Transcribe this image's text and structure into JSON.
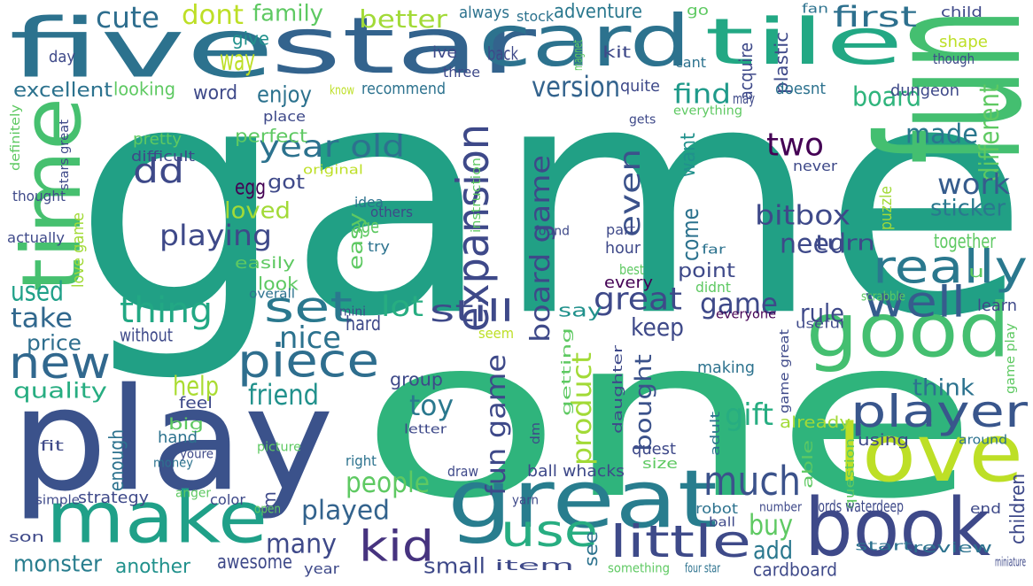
{
  "words": [
    {
      "text": "game",
      "color": "#21a085"
    },
    {
      "text": "one",
      "color": "#2fb47c"
    },
    {
      "text": "play",
      "color": "#3b528b"
    },
    {
      "text": "five",
      "color": "#2c728e"
    },
    {
      "text": "star",
      "color": "#33638d"
    },
    {
      "text": "card",
      "color": "#2c728e"
    },
    {
      "text": "tile",
      "color": "#22a884"
    },
    {
      "text": "fun",
      "color": "#44bf70"
    },
    {
      "text": "great",
      "color": "#287d8e"
    },
    {
      "text": "love",
      "color": "#bddf26"
    },
    {
      "text": "good",
      "color": "#44bf70"
    },
    {
      "text": "make",
      "color": "#1fa088"
    },
    {
      "text": "book",
      "color": "#3e4989"
    },
    {
      "text": "time",
      "color": "#46c06f"
    },
    {
      "text": "player",
      "color": "#39568c"
    },
    {
      "text": "really",
      "color": "#2a788e"
    },
    {
      "text": "expansion",
      "color": "#3e4989"
    },
    {
      "text": "piece",
      "color": "#2e6e8e"
    },
    {
      "text": "new",
      "color": "#31688e"
    },
    {
      "text": "set",
      "color": "#2a788e"
    },
    {
      "text": "well",
      "color": "#365c8d"
    },
    {
      "text": "use",
      "color": "#27ad81"
    },
    {
      "text": "little",
      "color": "#3e4a89"
    },
    {
      "text": "kid",
      "color": "#46337f"
    },
    {
      "text": "much",
      "color": "#3b528b"
    },
    {
      "text": "thing",
      "color": "#22a884"
    },
    {
      "text": "board game",
      "color": "#3e4989"
    },
    {
      "text": "fun game",
      "color": "#3e4989"
    },
    {
      "text": "great",
      "color": "#3e4989"
    },
    {
      "text": "game",
      "color": "#3e4989"
    },
    {
      "text": "cute",
      "color": "#2e6e8e"
    },
    {
      "text": "dont",
      "color": "#bddf26"
    },
    {
      "text": "family",
      "color": "#5ec962"
    },
    {
      "text": "better",
      "color": "#a2da37"
    },
    {
      "text": "adventure",
      "color": "#2a788e"
    },
    {
      "text": "first",
      "color": "#2d708e"
    },
    {
      "text": "version",
      "color": "#33638d"
    },
    {
      "text": "find",
      "color": "#1f9a8a"
    },
    {
      "text": "made",
      "color": "#2a778e"
    },
    {
      "text": "board",
      "color": "#2fb47c"
    },
    {
      "text": "different",
      "color": "#5ec962"
    },
    {
      "text": "year old",
      "color": "#2c728e"
    },
    {
      "text": "two",
      "color": "#440154"
    },
    {
      "text": "work",
      "color": "#365c8d"
    },
    {
      "text": "sticker",
      "color": "#2a788e"
    },
    {
      "text": "dd",
      "color": "#3e4989"
    },
    {
      "text": "playing",
      "color": "#3e4989"
    },
    {
      "text": "bitbox",
      "color": "#3e4989"
    },
    {
      "text": "need",
      "color": "#3e4989"
    },
    {
      "text": "even",
      "color": "#3b528b"
    },
    {
      "text": "come",
      "color": "#2c728e"
    },
    {
      "text": "want",
      "color": "#21918c"
    },
    {
      "text": "nice",
      "color": "#2c728e"
    },
    {
      "text": "lot",
      "color": "#27ad81"
    },
    {
      "text": "still",
      "color": "#3e4989"
    },
    {
      "text": "used",
      "color": "#1fa088"
    },
    {
      "text": "take",
      "color": "#31688e"
    },
    {
      "text": "price",
      "color": "#2e6e8e"
    },
    {
      "text": "quality",
      "color": "#27ad81"
    },
    {
      "text": "help",
      "color": "#aadc32"
    },
    {
      "text": "friend",
      "color": "#21918c"
    },
    {
      "text": "people",
      "color": "#5ec962"
    },
    {
      "text": "played",
      "color": "#33638d"
    },
    {
      "text": "many",
      "color": "#3e4989"
    },
    {
      "text": "monster",
      "color": "#287d8e"
    },
    {
      "text": "another",
      "color": "#21918c"
    },
    {
      "text": "awesome",
      "color": "#3e4989"
    },
    {
      "text": "small",
      "color": "#3e4989"
    },
    {
      "text": "toy",
      "color": "#2a788e"
    },
    {
      "text": "product",
      "color": "#a2da37"
    },
    {
      "text": "bought",
      "color": "#3b528b"
    },
    {
      "text": "gift",
      "color": "#27ad81"
    },
    {
      "text": "buy",
      "color": "#5ec962"
    },
    {
      "text": "add",
      "color": "#2a788e"
    },
    {
      "text": "cardboard",
      "color": "#3e4989"
    },
    {
      "text": "way",
      "color": "#bddf26"
    },
    {
      "text": "give",
      "color": "#21918c"
    },
    {
      "text": "word",
      "color": "#3e4989"
    },
    {
      "text": "enjoy",
      "color": "#2c728e"
    },
    {
      "text": "excellent",
      "color": "#2c728e"
    },
    {
      "text": "looking",
      "color": "#5ec962"
    },
    {
      "text": "perfect",
      "color": "#5ec962"
    },
    {
      "text": "egg",
      "color": "#440154"
    },
    {
      "text": "got",
      "color": "#3e4989"
    },
    {
      "text": "loved",
      "color": "#a2da37"
    },
    {
      "text": "age",
      "color": "#5ec962"
    },
    {
      "text": "easy",
      "color": "#5ec962"
    },
    {
      "text": "rule",
      "color": "#3e4989"
    },
    {
      "text": "turn",
      "color": "#3e4989"
    },
    {
      "text": "together",
      "color": "#5ec962"
    },
    {
      "text": "keep",
      "color": "#3e4989"
    },
    {
      "text": "think",
      "color": "#2c728e"
    },
    {
      "text": "hard",
      "color": "#3e4989"
    },
    {
      "text": "group",
      "color": "#3e4989"
    },
    {
      "text": "enough",
      "color": "#2c728e"
    },
    {
      "text": "children",
      "color": "#3e4989"
    },
    {
      "text": "see",
      "color": "#2c728e"
    },
    {
      "text": "im",
      "color": "#3e4989"
    },
    {
      "text": "look",
      "color": "#5ec962"
    },
    {
      "text": "point",
      "color": "#3e4989"
    },
    {
      "text": "without",
      "color": "#3e4989"
    },
    {
      "text": "say",
      "color": "#21918c"
    },
    {
      "text": "learn",
      "color": "#3e4989"
    },
    {
      "text": "always",
      "color": "#2c728e"
    },
    {
      "text": "stock",
      "color": "#2c728e"
    },
    {
      "text": "go",
      "color": "#5ec962"
    },
    {
      "text": "fan",
      "color": "#2c728e"
    },
    {
      "text": "child",
      "color": "#3e4989"
    },
    {
      "text": "magnet",
      "color": "#5ec962"
    },
    {
      "text": "kit",
      "color": "#3e4989"
    },
    {
      "text": "cant",
      "color": "#2c728e"
    },
    {
      "text": "acquire",
      "color": "#3e4989"
    },
    {
      "text": "plastic",
      "color": "#3e4989"
    },
    {
      "text": "shape",
      "color": "#bddf26"
    },
    {
      "text": "though",
      "color": "#3e4989"
    },
    {
      "text": "three",
      "color": "#3e4989"
    },
    {
      "text": "back",
      "color": "#3e4989"
    },
    {
      "text": "ive",
      "color": "#3e4989"
    },
    {
      "text": "day",
      "color": "#3e4989"
    },
    {
      "text": "know",
      "color": "#bddf26"
    },
    {
      "text": "recommend",
      "color": "#2c728e"
    },
    {
      "text": "quite",
      "color": "#3e4989"
    },
    {
      "text": "may",
      "color": "#3e4989"
    },
    {
      "text": "doesnt",
      "color": "#2c728e"
    },
    {
      "text": "dungeon",
      "color": "#3e4989"
    },
    {
      "text": "everything",
      "color": "#5ec962"
    },
    {
      "text": "place",
      "color": "#3e4989"
    },
    {
      "text": "idea",
      "color": "#2c728e"
    },
    {
      "text": "difficult",
      "color": "#3e4989"
    },
    {
      "text": "pretty",
      "color": "#5ec962"
    },
    {
      "text": "definitely",
      "color": "#5ec962"
    },
    {
      "text": "stars great",
      "color": "#3e4989"
    },
    {
      "text": "thought",
      "color": "#3e4989"
    },
    {
      "text": "original",
      "color": "#bddf26"
    },
    {
      "text": "instruction",
      "color": "#5ec962"
    },
    {
      "text": "never",
      "color": "#3e4989"
    },
    {
      "text": "puzzle",
      "color": "#a2da37"
    },
    {
      "text": "actually",
      "color": "#3e4989"
    },
    {
      "text": "love game",
      "color": "#a2da37"
    },
    {
      "text": "others",
      "color": "#3e4989"
    },
    {
      "text": "try",
      "color": "#2c728e"
    },
    {
      "text": "found",
      "color": "#3e4989"
    },
    {
      "text": "part",
      "color": "#3e4989"
    },
    {
      "text": "hour",
      "color": "#3e4989"
    },
    {
      "text": "far",
      "color": "#2c728e"
    },
    {
      "text": "best",
      "color": "#5ec962"
    },
    {
      "text": "every",
      "color": "#440154"
    },
    {
      "text": "didnt",
      "color": "#5ec962"
    },
    {
      "text": "easily",
      "color": "#5ec962"
    },
    {
      "text": "overall",
      "color": "#2c728e"
    },
    {
      "text": "u",
      "color": "#5ec962"
    },
    {
      "text": "scrabble",
      "color": "#5ec962"
    },
    {
      "text": "mini",
      "color": "#3e4989"
    },
    {
      "text": "everyone",
      "color": "#440154"
    },
    {
      "text": "useful",
      "color": "#3e4989"
    },
    {
      "text": "seem",
      "color": "#bddf26"
    },
    {
      "text": "making",
      "color": "#2c728e"
    },
    {
      "text": "game great",
      "color": "#3e4989"
    },
    {
      "text": "game play",
      "color": "#5ec962"
    },
    {
      "text": "feel",
      "color": "#3e4989"
    },
    {
      "text": "big",
      "color": "#5ec962"
    },
    {
      "text": "hand",
      "color": "#2c728e"
    },
    {
      "text": "youre",
      "color": "#3e4989"
    },
    {
      "text": "money",
      "color": "#2c728e"
    },
    {
      "text": "letter",
      "color": "#3e4989"
    },
    {
      "text": "dm",
      "color": "#3e4989"
    },
    {
      "text": "daughter",
      "color": "#3e4989"
    },
    {
      "text": "getting",
      "color": "#5ec962"
    },
    {
      "text": "adult",
      "color": "#2c728e"
    },
    {
      "text": "already",
      "color": "#a2da37"
    },
    {
      "text": "around",
      "color": "#2c728e"
    },
    {
      "text": "using",
      "color": "#3e4989"
    },
    {
      "text": "fit",
      "color": "#3e4989"
    },
    {
      "text": "picture",
      "color": "#5ec962"
    },
    {
      "text": "right",
      "color": "#2c728e"
    },
    {
      "text": "draw",
      "color": "#3e4989"
    },
    {
      "text": "quest",
      "color": "#3e4989"
    },
    {
      "text": "size",
      "color": "#5ec962"
    },
    {
      "text": "able",
      "color": "#5ec962"
    },
    {
      "text": "question",
      "color": "#5ec962"
    },
    {
      "text": "ball whacks",
      "color": "#3e4989"
    },
    {
      "text": "simple",
      "color": "#3e4989"
    },
    {
      "text": "strategy",
      "color": "#3e4989"
    },
    {
      "text": "anger",
      "color": "#5ec962"
    },
    {
      "text": "color",
      "color": "#3e4989"
    },
    {
      "text": "open",
      "color": "#5ec962"
    },
    {
      "text": "yarn",
      "color": "#3e4989"
    },
    {
      "text": "robot",
      "color": "#2c728e"
    },
    {
      "text": "number",
      "color": "#3e4989"
    },
    {
      "text": "ball",
      "color": "#3e4989"
    },
    {
      "text": "lords waterdeep",
      "color": "#3e4989"
    },
    {
      "text": "end",
      "color": "#3e4989"
    },
    {
      "text": "son",
      "color": "#3e4989"
    },
    {
      "text": "year",
      "color": "#3e4989"
    },
    {
      "text": "item",
      "color": "#3e4989"
    },
    {
      "text": "something",
      "color": "#5ec962"
    },
    {
      "text": "four star",
      "color": "#2c728e"
    },
    {
      "text": "start",
      "color": "#2c728e"
    },
    {
      "text": "review",
      "color": "#2c728e"
    },
    {
      "text": "miniature",
      "color": "#3e4989"
    },
    {
      "text": "gets",
      "color": "#3e4989"
    }
  ]
}
